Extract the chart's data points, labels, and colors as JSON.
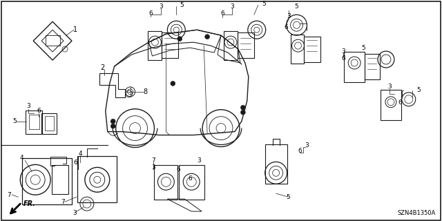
{
  "bg_color": "#ffffff",
  "line_color": "#1a1a1a",
  "text_color": "#000000",
  "diagram_code": "SZN4B1350A",
  "fig_w": 6.4,
  "fig_h": 3.2,
  "dpi": 100
}
